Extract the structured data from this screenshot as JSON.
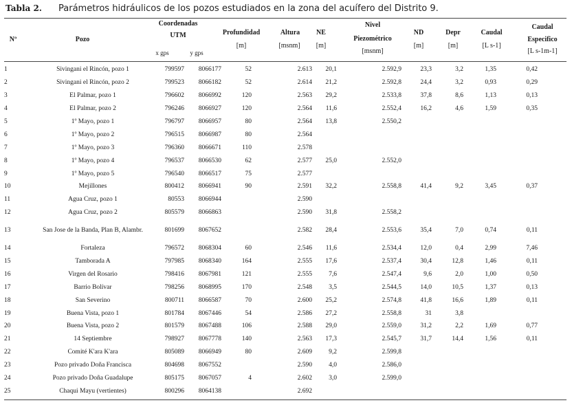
{
  "caption": {
    "label": "Tabla 2.",
    "text": "Parámetros hidráulicos de los pozos estudiados en la zona del acuífero del Distrito 9."
  },
  "headers": {
    "num": "Nº",
    "pozo": "Pozo",
    "coord_1": "Coordenadas",
    "coord_2": "UTM",
    "x": "x gps",
    "y": "y gps",
    "prof": "Profundidad",
    "prof_u": "[m]",
    "alt": "Altura",
    "alt_u": "[msnm]",
    "ne": "NE",
    "ne_u": "[m]",
    "np_1": "Nivel",
    "np_2": "Piezométrico",
    "np_u": "[msnm]",
    "nd": "ND",
    "nd_u": "[m]",
    "depr": "Depr",
    "depr_u": "[m]",
    "caudal": "Caudal",
    "caudal_u": "[L s-1]",
    "ce_1": "Caudal",
    "ce_2": "Especifico",
    "ce_u": "[L s-1m-1]"
  },
  "rows": [
    [
      "1",
      "Sivingani el Rincón, pozo 1",
      "799597",
      "8066177",
      "52",
      "2.613",
      "20,1",
      "2.592,9",
      "23,3",
      "3,2",
      "1,35",
      "0,42"
    ],
    [
      "2",
      "Sivingani el Rincón, pozo 2",
      "799523",
      "8066182",
      "52",
      "2.614",
      "21,2",
      "2.592,8",
      "24,4",
      "3,2",
      "0,93",
      "0,29"
    ],
    [
      "3",
      "El Palmar, pozo 1",
      "796602",
      "8066992",
      "120",
      "2.563",
      "29,2",
      "2.533,8",
      "37,8",
      "8,6",
      "1,13",
      "0,13"
    ],
    [
      "4",
      "El Palmar, pozo 2",
      "796246",
      "8066927",
      "120",
      "2.564",
      "11,6",
      "2.552,4",
      "16,2",
      "4,6",
      "1,59",
      "0,35"
    ],
    [
      "5",
      "1º Mayo, pozo 1",
      "796797",
      "8066957",
      "80",
      "2.564",
      "13,8",
      "2.550,2",
      "",
      "",
      "",
      ""
    ],
    [
      "6",
      "1º Mayo, pozo 2",
      "796515",
      "8066987",
      "80",
      "2.564",
      "",
      "",
      "",
      "",
      "",
      ""
    ],
    [
      "7",
      "1º Mayo, pozo 3",
      "796360",
      "8066671",
      "110",
      "2.578",
      "",
      "",
      "",
      "",
      "",
      ""
    ],
    [
      "8",
      "1º Mayo, pozo 4",
      "796537",
      "8066530",
      "62",
      "2.577",
      "25,0",
      "2.552,0",
      "",
      "",
      "",
      ""
    ],
    [
      "9",
      "1º Mayo, pozo 5",
      "796540",
      "8066517",
      "75",
      "2.577",
      "",
      "",
      "",
      "",
      "",
      ""
    ],
    [
      "10",
      "Mejillones",
      "800412",
      "8066941",
      "90",
      "2.591",
      "32,2",
      "2.558,8",
      "41,4",
      "9,2",
      "3,45",
      "0,37"
    ],
    [
      "11",
      "Agua Cruz, pozo 1",
      "80553",
      "8066944",
      "",
      "2.590",
      "",
      "",
      "",
      "",
      "",
      ""
    ],
    [
      "12",
      "Agua Cruz, pozo 2",
      "805579",
      "8066863",
      "",
      "2.590",
      "31,8",
      "2.558,2",
      "",
      "",
      "",
      ""
    ],
    [
      "13",
      "San Jose de la Banda, Plan B, Alambr.",
      "801699",
      "8067652",
      "",
      "2.582",
      "28,4",
      "2.553,6",
      "35,4",
      "7,0",
      "0,74",
      "0,11"
    ],
    [
      "14",
      "Fortaleza",
      "796572",
      "8068304",
      "60",
      "2.546",
      "11,6",
      "2.534,4",
      "12,0",
      "0,4",
      "2,99",
      "7,46"
    ],
    [
      "15",
      "Tamborada A",
      "797985",
      "8068340",
      "164",
      "2.555",
      "17,6",
      "2.537,4",
      "30,4",
      "12,8",
      "1,46",
      "0,11"
    ],
    [
      "16",
      "Virgen del Rosario",
      "798416",
      "8067981",
      "121",
      "2.555",
      "7,6",
      "2.547,4",
      "9,6",
      "2,0",
      "1,00",
      "0,50"
    ],
    [
      "17",
      "Barrio Bolívar",
      "798256",
      "8068995",
      "170",
      "2.548",
      "3,5",
      "2.544,5",
      "14,0",
      "10,5",
      "1,37",
      "0,13"
    ],
    [
      "18",
      "San Severino",
      "800711",
      "8066587",
      "70",
      "2.600",
      "25,2",
      "2.574,8",
      "41,8",
      "16,6",
      "1,89",
      "0,11"
    ],
    [
      "19",
      "Buena Vista, pozo 1",
      "801784",
      "8067446",
      "54",
      "2.586",
      "27,2",
      "2.558,8",
      "31",
      "3,8",
      "",
      ""
    ],
    [
      "20",
      "Buena Vista, pozo 2",
      "801579",
      "8067488",
      "106",
      "2.588",
      "29,0",
      "2.559,0",
      "31,2",
      "2,2",
      "1,69",
      "0,77"
    ],
    [
      "21",
      "14 Septiembre",
      "798927",
      "8067778",
      "140",
      "2.563",
      "17,3",
      "2.545,7",
      "31,7",
      "14,4",
      "1,56",
      "0,11"
    ],
    [
      "22",
      "Comité K'ara K'ara",
      "805089",
      "8066949",
      "80",
      "2.609",
      "9,2",
      "2.599,8",
      "",
      "",
      "",
      ""
    ],
    [
      "23",
      "Pozo privado Doña Francisca",
      "804698",
      "8067552",
      "",
      "2.590",
      "4,0",
      "2.586,0",
      "",
      "",
      "",
      ""
    ],
    [
      "24",
      "Pozo privado Doña Guadalupe",
      "805175",
      "8067057",
      "4",
      "2.602",
      "3,0",
      "2.599,0",
      "",
      "",
      "",
      ""
    ],
    [
      "25",
      "Chaqui Mayu (vertientes)",
      "800296",
      "8064138",
      "",
      "2.692",
      "",
      "",
      "",
      "",
      "",
      ""
    ]
  ]
}
